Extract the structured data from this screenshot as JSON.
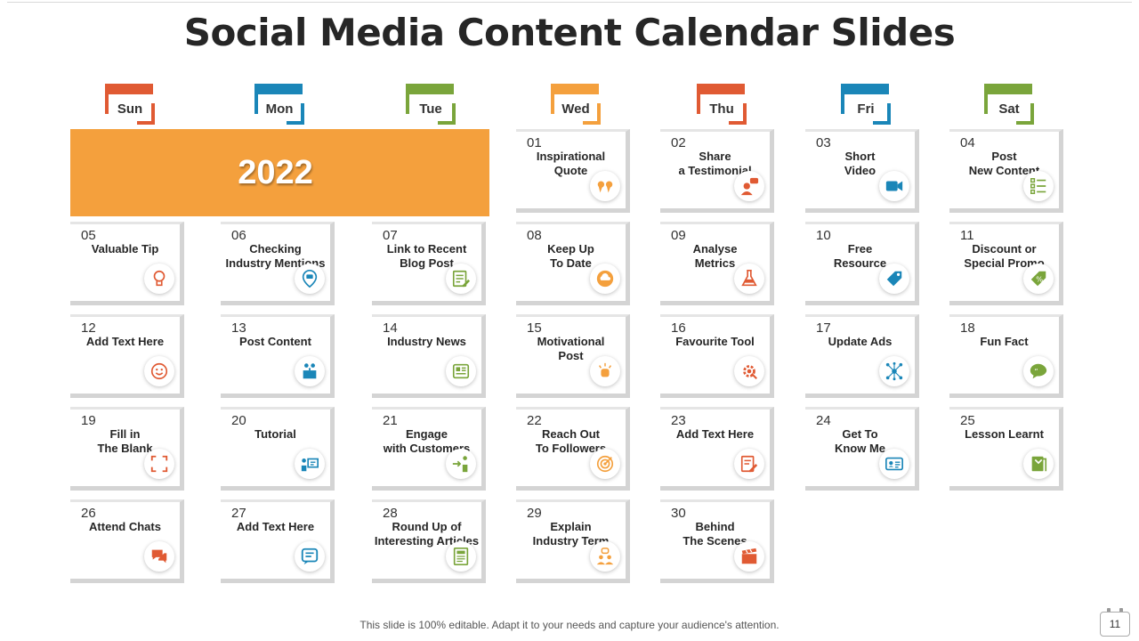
{
  "title": "Social Media Content Calendar Slides",
  "year": "2022",
  "colors": {
    "red": "#e05a33",
    "blue": "#1a86b8",
    "green": "#7aa53b",
    "orange": "#f4a03d",
    "banner": "#f4a03d"
  },
  "days": [
    {
      "label": "Sun",
      "color": "#e05a33"
    },
    {
      "label": "Mon",
      "color": "#1a86b8"
    },
    {
      "label": "Tue",
      "color": "#7aa53b"
    },
    {
      "label": "Wed",
      "color": "#f4a03d"
    },
    {
      "label": "Thu",
      "color": "#e05a33"
    },
    {
      "label": "Fri",
      "color": "#1a86b8"
    },
    {
      "label": "Sat",
      "color": "#7aa53b"
    }
  ],
  "entries": [
    {
      "num": "01",
      "label": "Inspirational\nQuote",
      "icon": "quote-icon",
      "color": "#f4a03d"
    },
    {
      "num": "02",
      "label": "Share\na Testimonial",
      "icon": "testimonial-icon",
      "color": "#e05a33"
    },
    {
      "num": "03",
      "label": "Short\nVideo",
      "icon": "video-camera-icon",
      "color": "#1a86b8"
    },
    {
      "num": "04",
      "label": "Post\nNew Content",
      "icon": "checklist-icon",
      "color": "#7aa53b"
    },
    {
      "num": "05",
      "label": "Valuable Tip",
      "icon": "lightbulb-hand-icon",
      "color": "#e05a33"
    },
    {
      "num": "06",
      "label": "Checking\nIndustry Mentions",
      "icon": "location-chat-icon",
      "color": "#1a86b8"
    },
    {
      "num": "07",
      "label": "Link to Recent\nBlog Post",
      "icon": "blog-edit-icon",
      "color": "#7aa53b"
    },
    {
      "num": "08",
      "label": "Keep Up\nTo Date",
      "icon": "cloud-update-icon",
      "color": "#f4a03d"
    },
    {
      "num": "09",
      "label": "Analyse\nMetrics",
      "icon": "lab-flask-icon",
      "color": "#e05a33"
    },
    {
      "num": "10",
      "label": "Free\nResource",
      "icon": "price-tag-icon",
      "color": "#1a86b8"
    },
    {
      "num": "11",
      "label": "Discount  or\nSpecial Promo",
      "icon": "discount-tag-icon",
      "color": "#7aa53b"
    },
    {
      "num": "12",
      "label": "Add  Text Here",
      "icon": "emoji-icon",
      "color": "#e05a33"
    },
    {
      "num": "13",
      "label": "Post Content",
      "icon": "share-box-icon",
      "color": "#1a86b8"
    },
    {
      "num": "14",
      "label": "Industry  News",
      "icon": "newspaper-icon",
      "color": "#7aa53b"
    },
    {
      "num": "15",
      "label": "Motivational\nPost",
      "icon": "motivation-fist-icon",
      "color": "#f4a03d"
    },
    {
      "num": "16",
      "label": "Favourite Tool",
      "icon": "gear-tool-icon",
      "color": "#e05a33"
    },
    {
      "num": "17",
      "label": "Update Ads",
      "icon": "network-hub-icon",
      "color": "#1a86b8"
    },
    {
      "num": "18",
      "label": "Fun Fact",
      "icon": "speech-quote-icon",
      "color": "#7aa53b"
    },
    {
      "num": "19",
      "label": "Fill in\nThe Blank",
      "icon": "frame-corners-icon",
      "color": "#e05a33"
    },
    {
      "num": "20",
      "label": "Tutorial",
      "icon": "presentation-icon",
      "color": "#1a86b8"
    },
    {
      "num": "21",
      "label": "Engage\nwith Customers",
      "icon": "customer-engage-icon",
      "color": "#7aa53b"
    },
    {
      "num": "22",
      "label": "Reach Out\nTo Followers",
      "icon": "target-icon",
      "color": "#f4a03d"
    },
    {
      "num": "23",
      "label": "Add Text Here",
      "icon": "edit-note-icon",
      "color": "#e05a33"
    },
    {
      "num": "24",
      "label": "Get To\nKnow Me",
      "icon": "id-card-icon",
      "color": "#1a86b8"
    },
    {
      "num": "25",
      "label": "Lesson Learnt",
      "icon": "book-lesson-icon",
      "color": "#7aa53b"
    },
    {
      "num": "26",
      "label": "Attend Chats",
      "icon": "chat-bubbles-icon",
      "color": "#e05a33"
    },
    {
      "num": "27",
      "label": "Add Text Here",
      "icon": "message-icon",
      "color": "#1a86b8"
    },
    {
      "num": "28",
      "label": "Round Up of\nInteresting Articles",
      "icon": "articles-icon",
      "color": "#7aa53b"
    },
    {
      "num": "29",
      "label": "Explain\nIndustry Term",
      "icon": "team-discussion-icon",
      "color": "#f4a03d"
    },
    {
      "num": "30",
      "label": "Behind\nThe Scenes",
      "icon": "clapperboard-icon",
      "color": "#e05a33"
    }
  ],
  "footer": "This slide is 100% editable. Adapt it to your needs and capture your audience's attention.",
  "page_number": "11"
}
